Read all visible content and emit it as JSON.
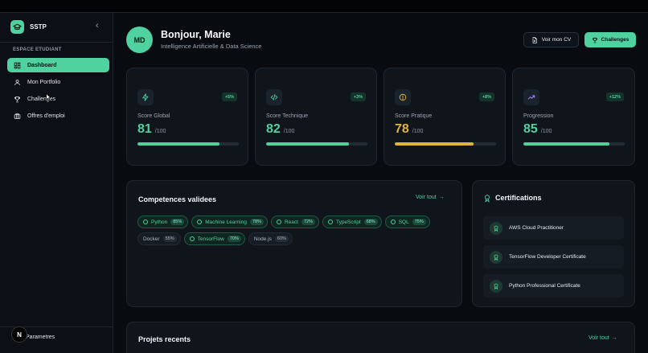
{
  "sidebar": {
    "brand": "SSTP",
    "section_label": "ESPACE ETUDIANT",
    "items": [
      {
        "label": "Dashboard",
        "icon": "grid-icon",
        "active": true
      },
      {
        "label": "Mon Portfolio",
        "icon": "user-icon",
        "active": false
      },
      {
        "label": "Challenges",
        "icon": "trophy-icon",
        "active": false
      },
      {
        "label": "Offres d'emploi",
        "icon": "briefcase-icon",
        "active": false
      }
    ],
    "settings_label": "Parametres",
    "badge": "N"
  },
  "header": {
    "initials": "MD",
    "greeting": "Bonjour, Marie",
    "subtitle": "Intelligence Artificielle & Data Science",
    "cv_button": "Voir mon CV",
    "challenges_button": "Challenges"
  },
  "stats": [
    {
      "label": "Score Global",
      "value": "81",
      "max": "/100",
      "delta": "+5%",
      "progress": 0.81,
      "color": "#4fd1a0",
      "icon": "zap-icon"
    },
    {
      "label": "Score Technique",
      "value": "82",
      "max": "/100",
      "delta": "+3%",
      "progress": 0.82,
      "color": "#4fd1a0",
      "icon": "code-icon"
    },
    {
      "label": "Score Pratique",
      "value": "78",
      "max": "/100",
      "delta": "+8%",
      "progress": 0.78,
      "color": "#e3b23c",
      "icon": "compass-icon"
    },
    {
      "label": "Progression",
      "value": "85",
      "max": "/100",
      "delta": "+12%",
      "progress": 0.85,
      "color": "#4fd1a0",
      "icon": "trend-icon"
    }
  ],
  "competences": {
    "title": "Competences validees",
    "see_all": "Voir tout",
    "skills": [
      {
        "name": "Python",
        "pct": "85%",
        "validated": true
      },
      {
        "name": "Machine Learning",
        "pct": "78%",
        "validated": true
      },
      {
        "name": "React",
        "pct": "72%",
        "validated": true
      },
      {
        "name": "TypeScript",
        "pct": "68%",
        "validated": true
      },
      {
        "name": "SQL",
        "pct": "75%",
        "validated": true
      },
      {
        "name": "Docker",
        "pct": "55%",
        "validated": false
      },
      {
        "name": "TensorFlow",
        "pct": "70%",
        "validated": true
      },
      {
        "name": "Node.js",
        "pct": "60%",
        "validated": false
      }
    ]
  },
  "certifications": {
    "title": "Certifications",
    "items": [
      "AWS Cloud Practitioner",
      "TensorFlow Developer Certificate",
      "Python Professional Certificate"
    ]
  },
  "projects": {
    "title": "Projets recents",
    "see_all": "Voir tout"
  },
  "colors": {
    "accent": "#4fd1a0",
    "warning": "#e3b23c",
    "background": "#080b10",
    "card": "#10151c"
  }
}
